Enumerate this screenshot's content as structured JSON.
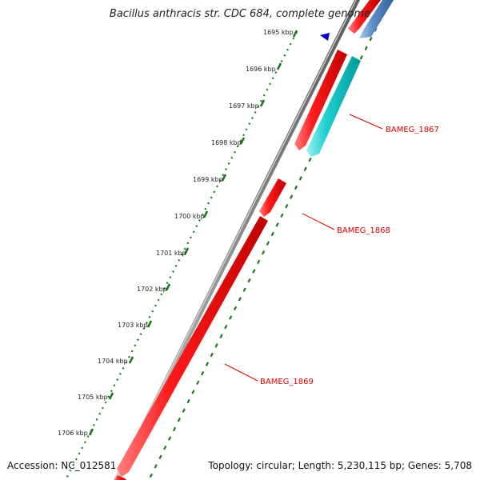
{
  "title": "Bacillus anthracis str. CDC 684, complete genome",
  "accession": "Accession: NC_012581",
  "summary": "Topology: circular; Length: 5,230,115 bp; Genes: 5,708",
  "ruler_ticks": [
    "1695 kbp",
    "1696 kbp",
    "1697 kbp",
    "1698 kbp",
    "1699 kbp",
    "1700 kbp",
    "1701 kbp",
    "1702 kbp",
    "1703 kbp",
    "1704 kbp",
    "1705 kbp",
    "1706 kbp"
  ],
  "gene_labels": [
    {
      "id": "cds-1867",
      "text": "BAMEG_1867"
    },
    {
      "id": "cds-1868",
      "text": "BAMEG_1868"
    },
    {
      "id": "cds-1869",
      "text": "BAMEG_1869"
    }
  ],
  "colors": {
    "backbone": "#8a8a8a",
    "cds_forward": "#ee0000",
    "cds_reverse": "#00c8c8",
    "other_feature": "#4f7fb8",
    "ruler": "#1a7a1a",
    "label": "#dd0000",
    "marker": "#0000cc"
  }
}
